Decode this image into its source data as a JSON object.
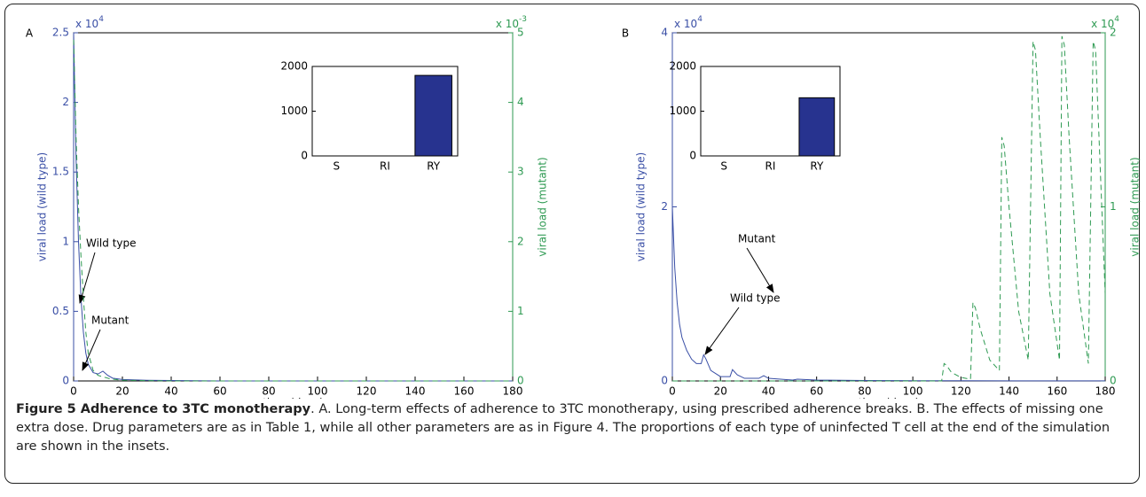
{
  "chart_data": [
    {
      "type": "line",
      "panel_label": "A",
      "xlabel": "time (days)",
      "ylabel": "viral load (wild type)",
      "y2label": "viral load (mutant)",
      "xlim": [
        0,
        180
      ],
      "xticks": [
        0,
        20,
        40,
        60,
        80,
        100,
        120,
        140,
        160,
        180
      ],
      "ylim": [
        0,
        2.5
      ],
      "yticks": [
        0,
        0.5,
        1,
        1.5,
        2,
        2.5
      ],
      "y_offset": {
        "base": "x 10",
        "exponent": "4"
      },
      "y2lim": [
        0,
        5
      ],
      "y2ticks": [
        0,
        1,
        2,
        3,
        4,
        5
      ],
      "y2_offset": {
        "base": "x 10",
        "exponent": "-3"
      },
      "series": [
        {
          "name": "Wild type",
          "color": "#3a4fa6",
          "dash": "solid",
          "axis": "y",
          "x": [
            0,
            1,
            2,
            3,
            4,
            5,
            6,
            8,
            10,
            12,
            14,
            16,
            20,
            30,
            60,
            180
          ],
          "values": [
            2.5,
            1.6,
            1.0,
            0.6,
            0.35,
            0.2,
            0.12,
            0.06,
            0.05,
            0.07,
            0.04,
            0.02,
            0.01,
            0.005,
            0,
            0
          ]
        },
        {
          "name": "Mutant",
          "color": "#2e9a52",
          "dash": "dashed",
          "axis": "y2",
          "x": [
            0,
            1,
            2,
            3,
            4,
            5,
            6,
            8,
            10,
            15,
            20,
            40,
            180
          ],
          "values": [
            4.9,
            3.5,
            2.5,
            1.8,
            1.2,
            0.7,
            0.4,
            0.15,
            0.08,
            0.03,
            0.01,
            0,
            0
          ]
        }
      ]
    },
    {
      "type": "bar",
      "categories": [
        "S",
        "RI",
        "RY"
      ],
      "values": [
        0,
        0,
        1800
      ],
      "color": "#27338f",
      "ylim": [
        0,
        2000
      ],
      "yticks": [
        0,
        1000,
        2000
      ]
    },
    {
      "type": "line",
      "panel_label": "B",
      "xlabel": "time (days)",
      "ylabel": "viral load (wild type)",
      "y2label": "viral load (mutant)",
      "xlim": [
        0,
        180
      ],
      "xticks": [
        0,
        20,
        40,
        60,
        80,
        100,
        120,
        140,
        160,
        180
      ],
      "ylim": [
        0,
        4
      ],
      "yticks": [
        0,
        2,
        4
      ],
      "y_offset": {
        "base": "x 10",
        "exponent": "4"
      },
      "y2lim": [
        0,
        2
      ],
      "y2ticks": [
        0,
        1,
        2
      ],
      "y2_offset": {
        "base": "x 10",
        "exponent": "4"
      },
      "series": [
        {
          "name": "Wild type",
          "color": "#3a4fa6",
          "dash": "solid",
          "axis": "y",
          "x": [
            0,
            1,
            2,
            3,
            4,
            6,
            8,
            10,
            12,
            13,
            14,
            16,
            20,
            24,
            25,
            27,
            30,
            36,
            38,
            40,
            45,
            50,
            52,
            60,
            80,
            100,
            120,
            180
          ],
          "values": [
            2.0,
            1.3,
            0.9,
            0.65,
            0.5,
            0.35,
            0.25,
            0.2,
            0.2,
            0.3,
            0.25,
            0.12,
            0.05,
            0.05,
            0.13,
            0.07,
            0.03,
            0.03,
            0.06,
            0.03,
            0.02,
            0.01,
            0.02,
            0.01,
            0.005,
            0.003,
            0.002,
            0.001
          ]
        },
        {
          "name": "Mutant",
          "color": "#2e9a52",
          "dash": "dashed",
          "axis": "y2",
          "x": [
            0,
            100,
            112,
            113,
            114,
            116,
            120,
            124,
            125,
            126,
            128,
            132,
            136,
            137,
            138,
            140,
            144,
            148,
            150,
            151,
            153,
            157,
            161,
            162,
            163,
            165,
            169,
            173,
            175,
            176,
            178,
            180
          ],
          "values": [
            0,
            0,
            0,
            0.1,
            0.09,
            0.05,
            0.02,
            0.01,
            0.45,
            0.42,
            0.3,
            0.12,
            0.06,
            1.4,
            1.35,
            1.0,
            0.4,
            0.12,
            1.95,
            1.9,
            1.4,
            0.5,
            0.12,
            1.98,
            1.93,
            1.4,
            0.5,
            0.1,
            1.95,
            1.9,
            1.2,
            0.5
          ]
        }
      ]
    },
    {
      "type": "bar",
      "categories": [
        "S",
        "RI",
        "RY"
      ],
      "values": [
        0,
        0,
        1300
      ],
      "color": "#27338f",
      "ylim": [
        0,
        2000
      ],
      "yticks": [
        0,
        1000,
        2000
      ]
    }
  ],
  "caption": {
    "title": "Figure 5 Adherence to 3TC monotherapy",
    "text": ". A. Long-term effects of adherence to 3TC monotherapy, using prescribed adherence breaks. B. The effects of missing one extra dose. Drug parameters are as in Table 1, while all other parameters are as in Figure 4. The proportions of each type of uninfected T cell at the end of the simulation are shown in the insets."
  }
}
